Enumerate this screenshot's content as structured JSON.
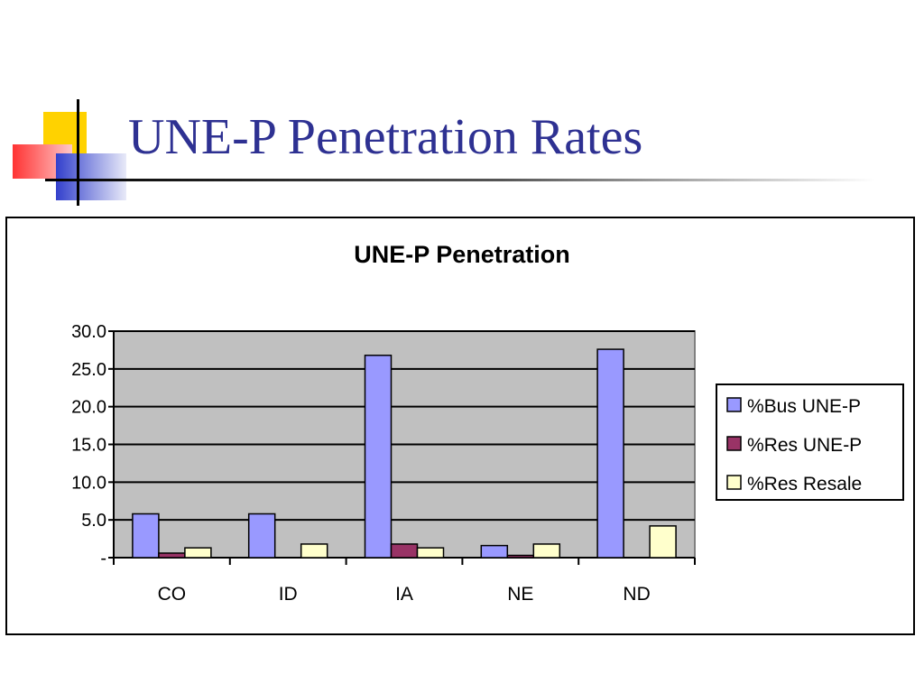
{
  "slide": {
    "title": "UNE-P Penetration Rates"
  },
  "colors": {
    "title": "#2E3192",
    "plot_bg": "#C0C0C0",
    "deco_yellow": "#FFD200",
    "deco_red": "#FF3333",
    "deco_blue": "#3340CC"
  },
  "chart_data": {
    "type": "bar",
    "title": "UNE-P Penetration",
    "xlabel": "",
    "ylabel": "",
    "categories": [
      "CO",
      "ID",
      "IA",
      "NE",
      "ND"
    ],
    "series": [
      {
        "name": "%Bus UNE-P",
        "color": "#9999FF",
        "values": [
          5.8,
          5.8,
          26.8,
          1.6,
          27.6
        ]
      },
      {
        "name": "%Res UNE-P",
        "color": "#993366",
        "values": [
          0.6,
          0,
          1.8,
          0.3,
          0
        ]
      },
      {
        "name": "%Res Resale",
        "color": "#FFFFCC",
        "values": [
          1.3,
          1.8,
          1.3,
          1.8,
          4.2
        ]
      }
    ],
    "ylim": [
      0,
      30
    ],
    "yticks": [
      {
        "value": 0,
        "label": "-"
      },
      {
        "value": 5,
        "label": "5.0"
      },
      {
        "value": 10,
        "label": "10.0"
      },
      {
        "value": 15,
        "label": "15.0"
      },
      {
        "value": 20,
        "label": "20.0"
      },
      {
        "value": 25,
        "label": "25.0"
      },
      {
        "value": 30,
        "label": "30.0"
      }
    ],
    "grid": true,
    "legend_position": "right"
  }
}
